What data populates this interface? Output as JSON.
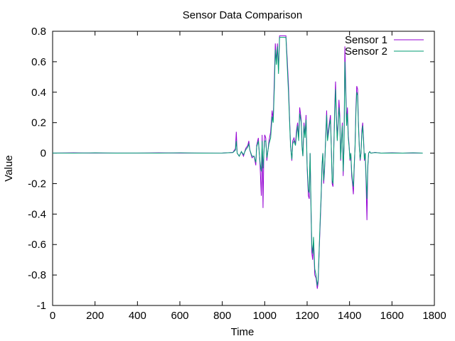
{
  "chart_data": {
    "type": "line",
    "title": "Sensor Data Comparison",
    "xlabel": "Time",
    "ylabel": "Value",
    "xlim": [
      0,
      1800
    ],
    "ylim": [
      -1,
      0.8
    ],
    "xticks": [
      0,
      200,
      400,
      600,
      800,
      1000,
      1200,
      1400,
      1600,
      1800
    ],
    "yticks": [
      -1,
      -0.8,
      -0.6,
      -0.4,
      -0.2,
      0,
      0.2,
      0.4,
      0.6,
      0.8
    ],
    "xtick_labels": [
      "0",
      "200",
      "400",
      "600",
      "800",
      "1000",
      "1200",
      "1400",
      "1600",
      "1800"
    ],
    "ytick_labels": [
      "-1",
      "-0.8",
      "-0.6",
      "-0.4",
      "-0.2",
      "0",
      "0.2",
      "0.4",
      "0.6",
      "0.8"
    ],
    "grid": false,
    "legend_position": "top-right",
    "series": [
      {
        "name": "Sensor 1",
        "color": "#9400d3",
        "points": [
          [
            0,
            0.0
          ],
          [
            100,
            0.002
          ],
          [
            200,
            0.0
          ],
          [
            300,
            0.001
          ],
          [
            400,
            0.0
          ],
          [
            500,
            0.002
          ],
          [
            600,
            0.0
          ],
          [
            700,
            0.001
          ],
          [
            800,
            0.0
          ],
          [
            850,
            0.005
          ],
          [
            862,
            0.03
          ],
          [
            866,
            0.14
          ],
          [
            870,
            0.0
          ],
          [
            880,
            -0.02
          ],
          [
            890,
            0.01
          ],
          [
            900,
            -0.02
          ],
          [
            910,
            0.03
          ],
          [
            920,
            0.05
          ],
          [
            925,
            0.08
          ],
          [
            930,
            0.02
          ],
          [
            940,
            -0.03
          ],
          [
            950,
            -0.02
          ],
          [
            958,
            -0.08
          ],
          [
            962,
            0.05
          ],
          [
            970,
            0.1
          ],
          [
            978,
            -0.08
          ],
          [
            984,
            -0.28
          ],
          [
            988,
            0.12
          ],
          [
            992,
            -0.36
          ],
          [
            996,
            0.0
          ],
          [
            1000,
            0.12
          ],
          [
            1005,
            0.1
          ],
          [
            1010,
            -0.05
          ],
          [
            1020,
            0.08
          ],
          [
            1028,
            0.14
          ],
          [
            1035,
            0.28
          ],
          [
            1040,
            0.22
          ],
          [
            1046,
            0.52
          ],
          [
            1050,
            0.72
          ],
          [
            1055,
            0.6
          ],
          [
            1060,
            0.72
          ],
          [
            1065,
            0.55
          ],
          [
            1070,
            0.77
          ],
          [
            1080,
            0.77
          ],
          [
            1090,
            0.77
          ],
          [
            1100,
            0.77
          ],
          [
            1106,
            0.62
          ],
          [
            1112,
            0.45
          ],
          [
            1118,
            0.2
          ],
          [
            1122,
            0.05
          ],
          [
            1128,
            -0.05
          ],
          [
            1132,
            0.08
          ],
          [
            1138,
            0.1
          ],
          [
            1145,
            0.06
          ],
          [
            1150,
            0.15
          ],
          [
            1155,
            0.2
          ],
          [
            1160,
            0.1
          ],
          [
            1165,
            0.3
          ],
          [
            1172,
            0.22
          ],
          [
            1176,
            0.05
          ],
          [
            1180,
            -0.02
          ],
          [
            1185,
            0.2
          ],
          [
            1190,
            0.12
          ],
          [
            1195,
            0.25
          ],
          [
            1200,
            -0.1
          ],
          [
            1206,
            -0.28
          ],
          [
            1210,
            -0.3
          ],
          [
            1214,
            0.0
          ],
          [
            1218,
            -0.35
          ],
          [
            1222,
            -0.65
          ],
          [
            1226,
            -0.7
          ],
          [
            1230,
            -0.58
          ],
          [
            1236,
            -0.8
          ],
          [
            1242,
            -0.82
          ],
          [
            1248,
            -0.89
          ],
          [
            1252,
            -0.85
          ],
          [
            1258,
            -0.6
          ],
          [
            1262,
            -0.45
          ],
          [
            1266,
            -0.3
          ],
          [
            1270,
            -0.1
          ],
          [
            1274,
            0.0
          ],
          [
            1278,
            -0.2
          ],
          [
            1282,
            -0.12
          ],
          [
            1286,
            0.05
          ],
          [
            1292,
            0.28
          ],
          [
            1296,
            0.1
          ],
          [
            1300,
            0.15
          ],
          [
            1305,
            0.2
          ],
          [
            1310,
            0.25
          ],
          [
            1314,
            0.05
          ],
          [
            1318,
            -0.2
          ],
          [
            1322,
            -0.22
          ],
          [
            1326,
            0.05
          ],
          [
            1330,
            0.3
          ],
          [
            1334,
            0.47
          ],
          [
            1338,
            0.25
          ],
          [
            1342,
            0.1
          ],
          [
            1346,
            0.2
          ],
          [
            1350,
            0.35
          ],
          [
            1354,
            0.25
          ],
          [
            1358,
            -0.05
          ],
          [
            1362,
            0.1
          ],
          [
            1366,
            0.2
          ],
          [
            1370,
            -0.15
          ],
          [
            1374,
            0.05
          ],
          [
            1378,
            0.7
          ],
          [
            1382,
            0.45
          ],
          [
            1386,
            0.2
          ],
          [
            1390,
            0.3
          ],
          [
            1394,
            0.12
          ],
          [
            1398,
            0.05
          ],
          [
            1402,
            -0.05
          ],
          [
            1406,
            0.0
          ],
          [
            1410,
            -0.15
          ],
          [
            1414,
            -0.2
          ],
          [
            1418,
            -0.27
          ],
          [
            1422,
            -0.1
          ],
          [
            1426,
            0.05
          ],
          [
            1430,
            0.3
          ],
          [
            1434,
            0.44
          ],
          [
            1438,
            0.42
          ],
          [
            1442,
            0.2
          ],
          [
            1446,
            0.05
          ],
          [
            1450,
            -0.05
          ],
          [
            1454,
            0.0
          ],
          [
            1458,
            0.15
          ],
          [
            1462,
            0.2
          ],
          [
            1466,
            0.1
          ],
          [
            1470,
            -0.05
          ],
          [
            1474,
            0.0
          ],
          [
            1478,
            -0.2
          ],
          [
            1482,
            -0.44
          ],
          [
            1486,
            -0.1
          ],
          [
            1490,
            0.0
          ],
          [
            1495,
            0.01
          ],
          [
            1500,
            0.0
          ],
          [
            1520,
            0.005
          ],
          [
            1550,
            0.0
          ],
          [
            1600,
            0.002
          ],
          [
            1650,
            0.0
          ],
          [
            1700,
            0.001
          ],
          [
            1745,
            0.0
          ]
        ]
      },
      {
        "name": "Sensor 2",
        "color": "#009e73",
        "points": [
          [
            0,
            0.001
          ],
          [
            100,
            0.0
          ],
          [
            200,
            0.002
          ],
          [
            300,
            0.0
          ],
          [
            400,
            0.001
          ],
          [
            500,
            0.0
          ],
          [
            600,
            0.002
          ],
          [
            700,
            0.0
          ],
          [
            800,
            0.001
          ],
          [
            850,
            0.004
          ],
          [
            862,
            0.02
          ],
          [
            866,
            0.08
          ],
          [
            870,
            0.0
          ],
          [
            880,
            -0.02
          ],
          [
            890,
            0.01
          ],
          [
            900,
            -0.01
          ],
          [
            910,
            0.02
          ],
          [
            920,
            0.04
          ],
          [
            925,
            0.06
          ],
          [
            930,
            0.02
          ],
          [
            940,
            -0.02
          ],
          [
            950,
            -0.02
          ],
          [
            958,
            -0.06
          ],
          [
            962,
            0.04
          ],
          [
            970,
            0.08
          ],
          [
            978,
            -0.06
          ],
          [
            984,
            -0.12
          ],
          [
            988,
            0.08
          ],
          [
            992,
            -0.1
          ],
          [
            996,
            0.0
          ],
          [
            1000,
            0.08
          ],
          [
            1005,
            0.08
          ],
          [
            1010,
            -0.03
          ],
          [
            1020,
            0.06
          ],
          [
            1028,
            0.1
          ],
          [
            1035,
            0.24
          ],
          [
            1040,
            0.2
          ],
          [
            1046,
            0.45
          ],
          [
            1050,
            0.68
          ],
          [
            1055,
            0.58
          ],
          [
            1060,
            0.7
          ],
          [
            1065,
            0.52
          ],
          [
            1070,
            0.76
          ],
          [
            1080,
            0.76
          ],
          [
            1090,
            0.76
          ],
          [
            1100,
            0.76
          ],
          [
            1106,
            0.58
          ],
          [
            1112,
            0.4
          ],
          [
            1118,
            0.18
          ],
          [
            1122,
            0.04
          ],
          [
            1128,
            -0.04
          ],
          [
            1132,
            0.06
          ],
          [
            1138,
            0.08
          ],
          [
            1145,
            0.05
          ],
          [
            1150,
            0.12
          ],
          [
            1155,
            0.18
          ],
          [
            1160,
            0.08
          ],
          [
            1165,
            0.26
          ],
          [
            1172,
            0.2
          ],
          [
            1176,
            0.04
          ],
          [
            1180,
            -0.02
          ],
          [
            1185,
            0.18
          ],
          [
            1190,
            0.1
          ],
          [
            1195,
            0.22
          ],
          [
            1200,
            -0.08
          ],
          [
            1206,
            -0.24
          ],
          [
            1210,
            -0.26
          ],
          [
            1214,
            0.0
          ],
          [
            1218,
            -0.32
          ],
          [
            1222,
            -0.6
          ],
          [
            1226,
            -0.66
          ],
          [
            1230,
            -0.55
          ],
          [
            1236,
            -0.76
          ],
          [
            1242,
            -0.8
          ],
          [
            1248,
            -0.87
          ],
          [
            1252,
            -0.83
          ],
          [
            1258,
            -0.58
          ],
          [
            1262,
            -0.42
          ],
          [
            1266,
            -0.28
          ],
          [
            1270,
            -0.08
          ],
          [
            1274,
            0.0
          ],
          [
            1278,
            -0.18
          ],
          [
            1282,
            -0.1
          ],
          [
            1286,
            0.04
          ],
          [
            1292,
            0.25
          ],
          [
            1296,
            0.08
          ],
          [
            1300,
            0.12
          ],
          [
            1305,
            0.18
          ],
          [
            1310,
            0.22
          ],
          [
            1314,
            0.04
          ],
          [
            1318,
            -0.18
          ],
          [
            1322,
            -0.2
          ],
          [
            1326,
            0.04
          ],
          [
            1330,
            0.26
          ],
          [
            1334,
            0.42
          ],
          [
            1338,
            0.22
          ],
          [
            1342,
            0.08
          ],
          [
            1346,
            0.18
          ],
          [
            1350,
            0.3
          ],
          [
            1354,
            0.22
          ],
          [
            1358,
            -0.04
          ],
          [
            1362,
            0.08
          ],
          [
            1366,
            0.18
          ],
          [
            1370,
            -0.12
          ],
          [
            1374,
            0.04
          ],
          [
            1378,
            0.6
          ],
          [
            1382,
            0.4
          ],
          [
            1386,
            0.18
          ],
          [
            1390,
            0.26
          ],
          [
            1394,
            0.1
          ],
          [
            1398,
            0.04
          ],
          [
            1402,
            -0.04
          ],
          [
            1406,
            0.0
          ],
          [
            1410,
            -0.12
          ],
          [
            1414,
            -0.18
          ],
          [
            1418,
            -0.22
          ],
          [
            1422,
            -0.08
          ],
          [
            1426,
            0.04
          ],
          [
            1430,
            0.26
          ],
          [
            1434,
            0.4
          ],
          [
            1438,
            0.38
          ],
          [
            1442,
            0.18
          ],
          [
            1446,
            0.04
          ],
          [
            1450,
            -0.04
          ],
          [
            1454,
            0.0
          ],
          [
            1458,
            0.12
          ],
          [
            1462,
            0.18
          ],
          [
            1466,
            0.08
          ],
          [
            1470,
            -0.04
          ],
          [
            1474,
            0.0
          ],
          [
            1478,
            -0.16
          ],
          [
            1482,
            -0.3
          ],
          [
            1486,
            -0.08
          ],
          [
            1490,
            0.0
          ],
          [
            1495,
            0.01
          ],
          [
            1500,
            0.0
          ],
          [
            1520,
            0.004
          ],
          [
            1550,
            0.0
          ],
          [
            1600,
            0.001
          ],
          [
            1650,
            0.0
          ],
          [
            1700,
            0.002
          ],
          [
            1745,
            0.0
          ]
        ]
      }
    ]
  }
}
